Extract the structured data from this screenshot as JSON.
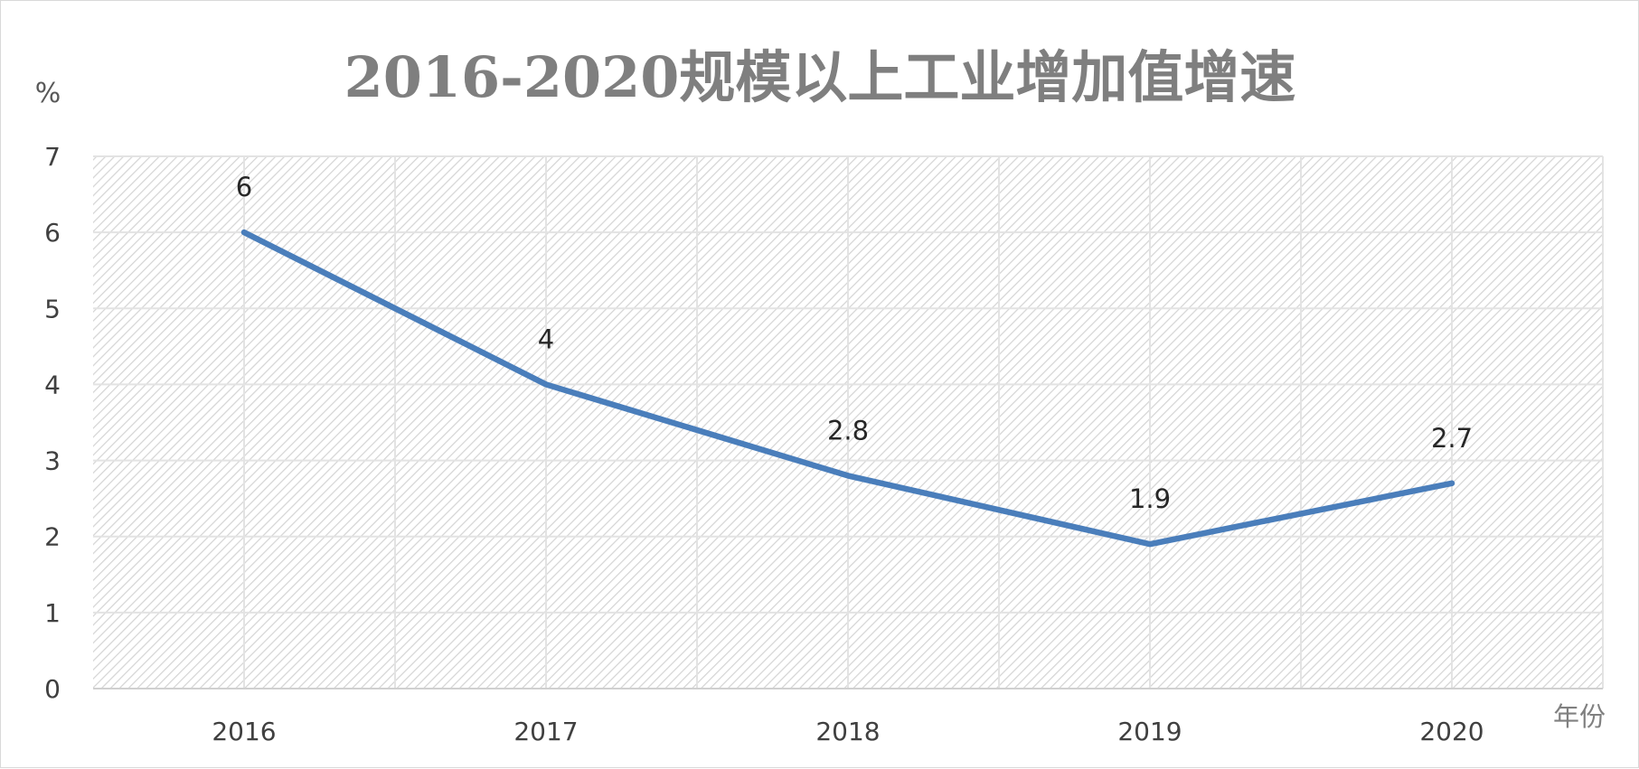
{
  "chart_data": {
    "type": "line",
    "title": "2016-2020规模以上工业增加值增速",
    "ylabel": "%",
    "xlabel": "年份",
    "categories": [
      "2016",
      "2017",
      "2018",
      "2019",
      "2020"
    ],
    "series": [
      {
        "values": [
          6,
          4,
          2.8,
          1.9,
          2.7
        ],
        "color": "#4a7ebb"
      }
    ],
    "data_labels": [
      "6",
      "4",
      "2.8",
      "1.9",
      "2.7"
    ],
    "ylim": [
      0,
      7
    ],
    "yticks": [
      "0",
      "1",
      "2",
      "3",
      "4",
      "5",
      "6",
      "7"
    ],
    "grid": true,
    "plot_background": "light gray diagonal hatch"
  }
}
